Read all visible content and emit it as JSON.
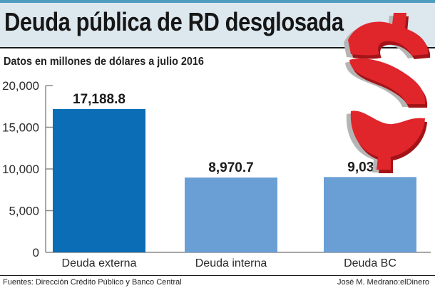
{
  "header": {
    "title": "Deuda pública de RD desglosada",
    "subtitle": "Datos en millones de dólares a julio 2016"
  },
  "footer": {
    "source": "Fuentes: Dirección Crédito Público y Banco Central",
    "credit": "José M. Medrano:elDinero"
  },
  "decoration": {
    "icon": "dollar-sign-puzzle-icon",
    "color": "#e0252b"
  },
  "colors": {
    "accent_strip": "#4f9cc0",
    "title_band": "#dde7ee",
    "bar_primary": "#0a6db5",
    "bar_secondary": "#6a9fd6"
  },
  "chart_data": {
    "type": "bar",
    "title": "Deuda pública de RD desglosada",
    "subtitle": "Datos en millones de dólares a julio 2016",
    "xlabel": "",
    "ylabel": "",
    "categories": [
      "Deuda externa",
      "Deuda interna",
      "Deuda BC"
    ],
    "values": [
      17188.8,
      8970.7,
      9030.7
    ],
    "value_labels": [
      "17,188.8",
      "8,970.7",
      "9,030.7"
    ],
    "bar_colors": [
      "#0a6db5",
      "#6a9fd6",
      "#6a9fd6"
    ],
    "ylim": [
      0,
      20000
    ],
    "yticks": [
      0,
      5000,
      10000,
      15000,
      20000
    ],
    "ytick_labels": [
      "0",
      "5,000",
      "10,000",
      "15,000",
      "20,000"
    ],
    "grid": false,
    "legend": "none"
  }
}
